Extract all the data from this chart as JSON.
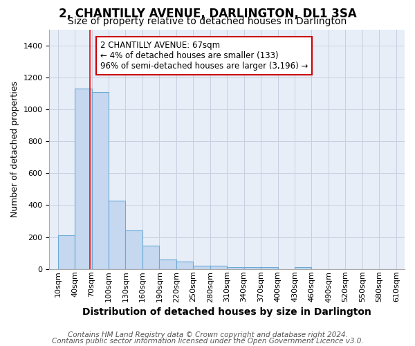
{
  "title": "2, CHANTILLY AVENUE, DARLINGTON, DL1 3SA",
  "subtitle": "Size of property relative to detached houses in Darlington",
  "xlabel": "Distribution of detached houses by size in Darlington",
  "ylabel": "Number of detached properties",
  "bin_left_edges": [
    10,
    40,
    70,
    100,
    130,
    160,
    190,
    220,
    250,
    280,
    310,
    340,
    370,
    400,
    430,
    460,
    490,
    520,
    550,
    580
  ],
  "bin_width": 30,
  "bar_heights": [
    210,
    1130,
    1110,
    430,
    240,
    145,
    60,
    45,
    22,
    20,
    10,
    12,
    10,
    0,
    12,
    0,
    0,
    0,
    0,
    0
  ],
  "bar_color": "#c5d8f0",
  "bar_edge_color": "#6aaad4",
  "red_line_x": 67,
  "ylim": [
    0,
    1500
  ],
  "yticks": [
    0,
    200,
    400,
    600,
    800,
    1000,
    1200,
    1400
  ],
  "xtick_values": [
    10,
    40,
    70,
    100,
    130,
    160,
    190,
    220,
    250,
    280,
    310,
    340,
    370,
    400,
    430,
    460,
    490,
    520,
    550,
    580,
    610
  ],
  "annotation_text": "2 CHANTILLY AVENUE: 67sqm\n← 4% of detached houses are smaller (133)\n96% of semi-detached houses are larger (3,196) →",
  "annotation_box_facecolor": "#ffffff",
  "annotation_box_edgecolor": "#cc0000",
  "footer_line1": "Contains HM Land Registry data © Crown copyright and database right 2024.",
  "footer_line2": "Contains public sector information licensed under the Open Government Licence v3.0.",
  "background_color": "#ffffff",
  "plot_background_color": "#e8eef8",
  "grid_color": "#c8cfe0",
  "title_fontsize": 12,
  "subtitle_fontsize": 10,
  "xlabel_fontsize": 10,
  "ylabel_fontsize": 9,
  "tick_fontsize": 8,
  "annotation_fontsize": 8.5,
  "footer_fontsize": 7.5
}
